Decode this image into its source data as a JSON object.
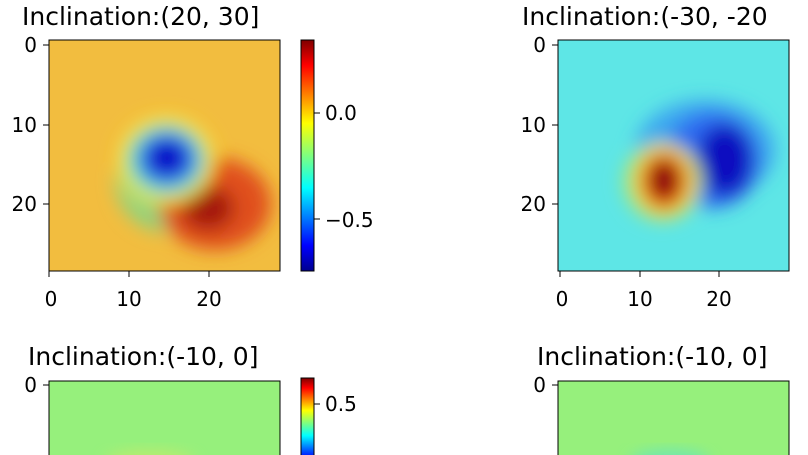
{
  "chart_data": [
    {
      "type": "heatmap",
      "title": "Inclination:(20, 30]",
      "grid": false,
      "x_ticks": [
        "0",
        "10",
        "20"
      ],
      "y_ticks": [
        "0",
        "10",
        "20"
      ],
      "xlim": [
        0,
        29
      ],
      "ylim": [
        29,
        0
      ],
      "colorbar": {
        "range": [
          -0.75,
          0.33
        ],
        "ticks": [
          "0.0",
          "−0.5"
        ],
        "tick_values": [
          0.0,
          -0.5
        ]
      },
      "background_value": 0.15,
      "features": [
        {
          "kind": "min",
          "center": [
            15,
            15
          ],
          "value": -0.75
        },
        {
          "kind": "max",
          "center": [
            20,
            21
          ],
          "value": 0.33
        }
      ]
    },
    {
      "type": "heatmap",
      "title": "Inclination:(-30, -20",
      "grid": false,
      "x_ticks": [
        "0",
        "10",
        "20"
      ],
      "y_ticks": [
        "0",
        "10",
        "20"
      ],
      "xlim": [
        0,
        29
      ],
      "ylim": [
        29,
        0
      ],
      "background_value": -0.2,
      "features": [
        {
          "kind": "max",
          "center": [
            12,
            17
          ],
          "value": 0.33
        },
        {
          "kind": "min",
          "center": [
            21,
            15
          ],
          "value": -0.75
        }
      ]
    },
    {
      "type": "heatmap",
      "title": "Inclination:(-10, 0]",
      "grid": false,
      "y_ticks": [
        "0"
      ],
      "xlim": [
        0,
        29
      ],
      "ylim": [
        29,
        0
      ],
      "colorbar": {
        "range": [
          -0.2,
          0.65
        ],
        "ticks": [
          "0.5"
        ],
        "tick_values": [
          0.5
        ]
      },
      "background_value": 0.1
    },
    {
      "type": "heatmap",
      "title": "Inclination:(-10, 0]",
      "grid": false,
      "y_ticks": [
        "0"
      ],
      "xlim": [
        0,
        29
      ],
      "ylim": [
        29,
        0
      ],
      "background_value": 0.1
    }
  ]
}
